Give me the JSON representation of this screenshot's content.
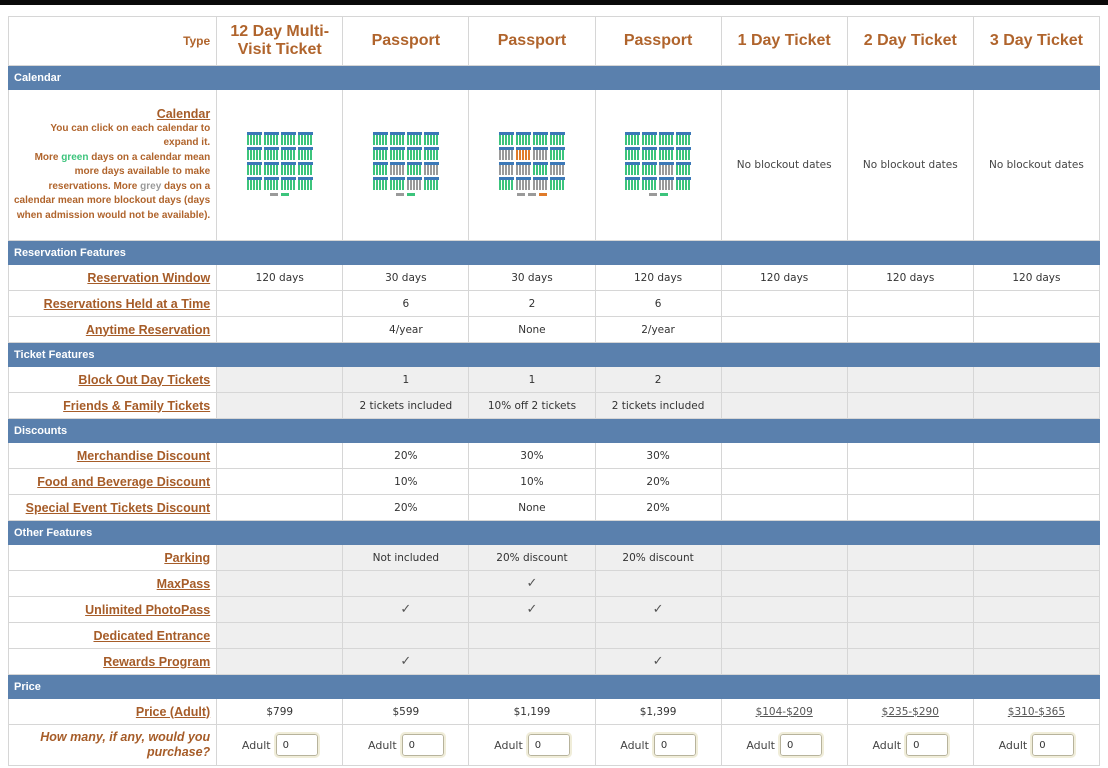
{
  "header": {
    "type_label": "Type",
    "columns": [
      "12 Day Multi-Visit Ticket",
      "Passport",
      "Passport",
      "Passport",
      "1 Day Ticket",
      "2 Day Ticket",
      "3 Day Ticket"
    ]
  },
  "sections": {
    "calendar": "Calendar",
    "reservation": "Reservation Features",
    "ticket": "Ticket Features",
    "discounts": "Discounts",
    "other": "Other Features",
    "price": "Price"
  },
  "calendar": {
    "link": "Calendar",
    "desc_1": "You can click on each calendar to expand it.",
    "desc_2a": "More ",
    "desc_green": "green",
    "desc_2b": " days on a calendar mean more days available to make reservations. More ",
    "desc_grey": "grey",
    "desc_2c": " days on a calendar mean more blockout days (days when admission would not be available).",
    "no_blockout": "No blockout dates"
  },
  "reservation": {
    "window_label": "Reservation Window",
    "window": [
      "120 days",
      "30 days",
      "30 days",
      "120 days",
      "120 days",
      "120 days",
      "120 days"
    ],
    "held_label": "Reservations Held at a Time",
    "held": [
      "",
      "6",
      "2",
      "6",
      "",
      "",
      ""
    ],
    "anytime_label": "Anytime Reservation",
    "anytime": [
      "",
      "4/year",
      "None",
      "2/year",
      "",
      "",
      ""
    ]
  },
  "ticket": {
    "blockout_label": "Block Out Day Tickets",
    "blockout": [
      "",
      "1",
      "1",
      "2",
      "",
      "",
      ""
    ],
    "friends_label": "Friends & Family Tickets",
    "friends": [
      "",
      "2 tickets included",
      "10% off 2 tickets",
      "2 tickets included",
      "",
      "",
      ""
    ]
  },
  "discounts": {
    "merch_label": "Merchandise Discount",
    "merch": [
      "",
      "20%",
      "30%",
      "30%",
      "",
      "",
      ""
    ],
    "food_label": "Food and Beverage Discount",
    "food": [
      "",
      "10%",
      "10%",
      "20%",
      "",
      "",
      ""
    ],
    "special_label": "Special Event Tickets Discount",
    "special": [
      "",
      "20%",
      "None",
      "20%",
      "",
      "",
      ""
    ]
  },
  "other": {
    "parking_label": "Parking",
    "parking": [
      "",
      "Not included",
      "20% discount",
      "20% discount",
      "",
      "",
      ""
    ],
    "maxpass_label": "MaxPass",
    "maxpass": [
      "",
      "",
      "✓",
      "",
      "",
      "",
      ""
    ],
    "photopass_label": "Unlimited PhotoPass",
    "photopass": [
      "",
      "✓",
      "✓",
      "✓",
      "",
      "",
      ""
    ],
    "entrance_label": "Dedicated Entrance",
    "entrance": [
      "",
      "",
      "",
      "",
      "",
      "",
      ""
    ],
    "rewards_label": "Rewards Program",
    "rewards": [
      "",
      "✓",
      "",
      "✓",
      "",
      "",
      ""
    ]
  },
  "price": {
    "label": "Price (Adult)",
    "values": [
      "$799",
      "$599",
      "$1,199",
      "$1,399",
      "$104-$209",
      "$235-$290",
      "$310-$365"
    ],
    "question": "How many, if any, would you purchase?",
    "qty_label": "Adult",
    "qty_values": [
      "0",
      "0",
      "0",
      "0",
      "0",
      "0",
      "0"
    ]
  },
  "colors": {
    "section_bar": "#5a80ad",
    "label_text": "#a65c28",
    "available_green": "#3cc47c",
    "blockout_grey": "#9a9a9a",
    "highlight_orange": "#e07b2a"
  }
}
